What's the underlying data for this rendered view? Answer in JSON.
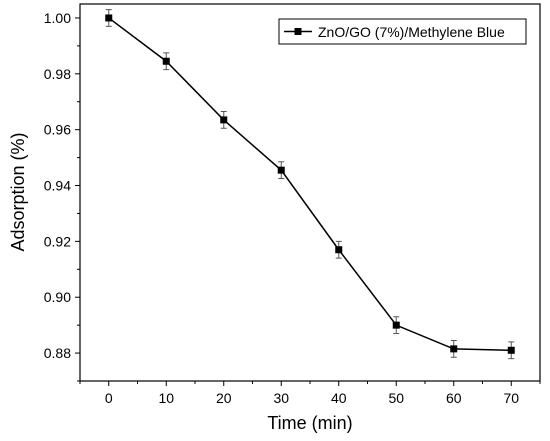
{
  "chart_data": {
    "type": "line",
    "title": "",
    "xlabel": "Time (min)",
    "ylabel": "Adsorption (%)",
    "xlim": [
      -5,
      75
    ],
    "ylim": [
      0.87,
      1.005
    ],
    "xticks": [
      0,
      10,
      20,
      30,
      40,
      50,
      60,
      70
    ],
    "yticks": [
      0.88,
      0.9,
      0.92,
      0.94,
      0.96,
      0.98,
      1.0
    ],
    "ytick_labels": [
      "0.88",
      "0.90",
      "0.92",
      "0.94",
      "0.96",
      "0.98",
      "1.00"
    ],
    "grid": false,
    "legend_position": "top-right",
    "series": [
      {
        "name": "ZnO/GO (7%)/Methylene Blue",
        "color": "#000000",
        "marker": "square",
        "x": [
          0,
          10,
          20,
          30,
          40,
          50,
          60,
          70
        ],
        "y": [
          1.0,
          0.9845,
          0.9635,
          0.9455,
          0.917,
          0.89,
          0.8815,
          0.881
        ],
        "error": [
          0.003,
          0.003,
          0.003,
          0.003,
          0.003,
          0.003,
          0.003,
          0.003
        ]
      }
    ]
  }
}
